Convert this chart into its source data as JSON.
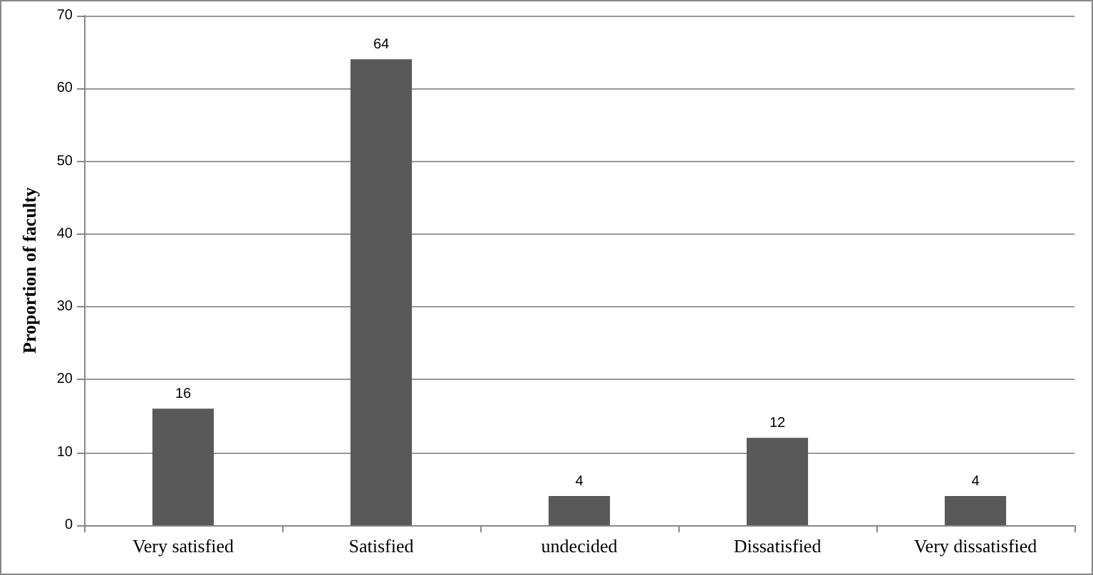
{
  "chart_data": {
    "type": "bar",
    "ylabel": "Proportion of faculty",
    "categories": [
      "Very satisfied",
      "Satisfied",
      "undecided",
      "Dissatisfied",
      "Very dissatisfied"
    ],
    "values": [
      16,
      64,
      4,
      12,
      4
    ],
    "color": "#595959",
    "ylim": [
      0,
      70
    ],
    "yticks": [
      0,
      10,
      20,
      30,
      40,
      50,
      60,
      70
    ],
    "grid": "y",
    "data_labels": true
  }
}
